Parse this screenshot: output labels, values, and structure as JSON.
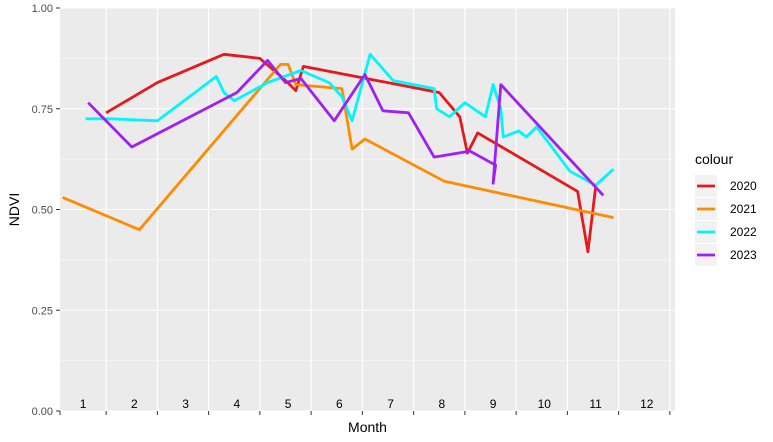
{
  "chart_data": {
    "type": "line",
    "xlabel": "Month",
    "ylabel": "NDVI",
    "xlim": [
      0.6,
      12.6
    ],
    "ylim": [
      0,
      1
    ],
    "y_ticks": [
      "0.00",
      "0.25",
      "0.50",
      "0.75",
      "1.00"
    ],
    "month_labels": [
      "1",
      "2",
      "3",
      "4",
      "5",
      "6",
      "7",
      "8",
      "9",
      "10",
      "11",
      "12"
    ],
    "grid": true,
    "background": "#EBEBEB",
    "legend": {
      "title": "colour",
      "position": "right"
    },
    "series": [
      {
        "name": "2020",
        "color": "#E41A1C",
        "points": [
          [
            1.5,
            0.74
          ],
          [
            2.5,
            0.815
          ],
          [
            3.8,
            0.885
          ],
          [
            4.5,
            0.875
          ],
          [
            5.0,
            0.82
          ],
          [
            5.2,
            0.795
          ],
          [
            5.35,
            0.855
          ],
          [
            8.0,
            0.79
          ],
          [
            8.4,
            0.73
          ],
          [
            8.55,
            0.64
          ],
          [
            8.75,
            0.69
          ],
          [
            10.7,
            0.545
          ],
          [
            10.9,
            0.395
          ],
          [
            11.05,
            0.555
          ]
        ]
      },
      {
        "name": "2021",
        "color": "#FF8C00",
        "points": [
          [
            0.65,
            0.53
          ],
          [
            2.15,
            0.45
          ],
          [
            4.9,
            0.86
          ],
          [
            5.05,
            0.86
          ],
          [
            5.2,
            0.81
          ],
          [
            6.1,
            0.8
          ],
          [
            6.3,
            0.65
          ],
          [
            6.55,
            0.675
          ],
          [
            8.1,
            0.57
          ],
          [
            11.4,
            0.48
          ]
        ]
      },
      {
        "name": "2022",
        "color": "#00F5FF",
        "points": [
          [
            1.1,
            0.725
          ],
          [
            1.6,
            0.725
          ],
          [
            2.5,
            0.72
          ],
          [
            3.65,
            0.83
          ],
          [
            3.8,
            0.79
          ],
          [
            4.0,
            0.77
          ],
          [
            4.65,
            0.815
          ],
          [
            5.3,
            0.845
          ],
          [
            5.85,
            0.815
          ],
          [
            6.1,
            0.78
          ],
          [
            6.3,
            0.72
          ],
          [
            6.65,
            0.885
          ],
          [
            7.1,
            0.82
          ],
          [
            7.9,
            0.8
          ],
          [
            7.95,
            0.75
          ],
          [
            8.2,
            0.73
          ],
          [
            8.5,
            0.765
          ],
          [
            8.9,
            0.73
          ],
          [
            9.05,
            0.81
          ],
          [
            9.2,
            0.75
          ],
          [
            9.25,
            0.68
          ],
          [
            9.55,
            0.695
          ],
          [
            9.7,
            0.68
          ],
          [
            9.9,
            0.705
          ],
          [
            10.55,
            0.595
          ],
          [
            11.05,
            0.56
          ],
          [
            11.4,
            0.6
          ]
        ]
      },
      {
        "name": "2023",
        "color": "#A020F0",
        "points": [
          [
            1.15,
            0.765
          ],
          [
            2.0,
            0.655
          ],
          [
            4.05,
            0.79
          ],
          [
            4.65,
            0.87
          ],
          [
            5.0,
            0.815
          ],
          [
            5.3,
            0.825
          ],
          [
            5.95,
            0.72
          ],
          [
            6.55,
            0.835
          ],
          [
            6.9,
            0.745
          ],
          [
            7.4,
            0.74
          ],
          [
            7.9,
            0.63
          ],
          [
            8.6,
            0.645
          ],
          [
            9.1,
            0.61
          ],
          [
            9.05,
            0.565
          ],
          [
            9.2,
            0.81
          ],
          [
            11.2,
            0.535
          ]
        ]
      }
    ]
  }
}
